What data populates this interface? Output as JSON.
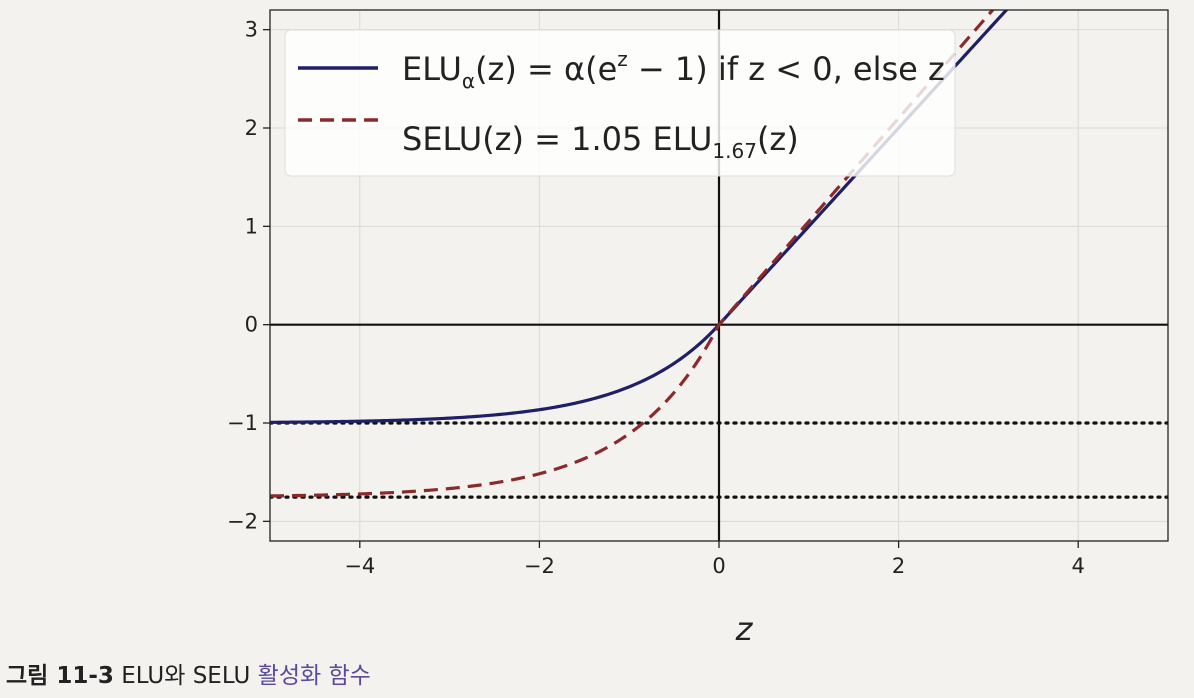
{
  "chart_data": {
    "type": "line",
    "xlabel": "z",
    "ylabel": "",
    "xlim": [
      -5,
      5
    ],
    "ylim": [
      -2.2,
      3.2
    ],
    "xticks": [
      -4,
      -2,
      0,
      2,
      4
    ],
    "yticks": [
      -2,
      -1,
      0,
      1,
      2,
      3
    ],
    "tick_labels": {
      "x": [
        "−4",
        "−2",
        "0",
        "2",
        "4"
      ],
      "y": [
        "−2",
        "−1",
        "0",
        "1",
        "2",
        "3"
      ]
    },
    "grid": true,
    "legend_position": "top-left",
    "series": [
      {
        "name": "ELU_α(z) = α(e^z − 1) if z < 0, else z",
        "color": "#1f1f66",
        "style": "solid",
        "formula": "z < 0 ? alpha*(exp(z)-1) : z",
        "alpha": 1.0,
        "scale": 1.0
      },
      {
        "name": "SELU(z) = 1.05 ELU_1.67(z)",
        "color": "#8b2a2a",
        "style": "dashed",
        "formula": "scale * (z < 0 ? alpha*(exp(z)-1) : z)",
        "alpha": 1.67,
        "scale": 1.05
      }
    ],
    "reference_lines": [
      {
        "kind": "horizontal",
        "y": 0,
        "style": "solid",
        "color": "#111111"
      },
      {
        "kind": "vertical",
        "x": 0,
        "style": "solid",
        "color": "#111111"
      },
      {
        "kind": "horizontal",
        "y": -1,
        "style": "dotted",
        "color": "#111111"
      },
      {
        "kind": "horizontal",
        "y": -1.7535,
        "style": "dotted",
        "color": "#111111"
      }
    ]
  },
  "legend": {
    "elu": {
      "prefix": "ELU",
      "sub": "α",
      "rest": "(z) = α(e",
      "sup": "z",
      "suffix": " − 1) if z < 0, else z"
    },
    "selu": {
      "prefix": "SELU(z) = 1.05 ELU",
      "sub": "1.67",
      "suffix": "(z)"
    }
  },
  "caption": {
    "number": "그림 11-3",
    "text_latin": " ELU와 SELU ",
    "text_korean": "활성화 함수"
  }
}
